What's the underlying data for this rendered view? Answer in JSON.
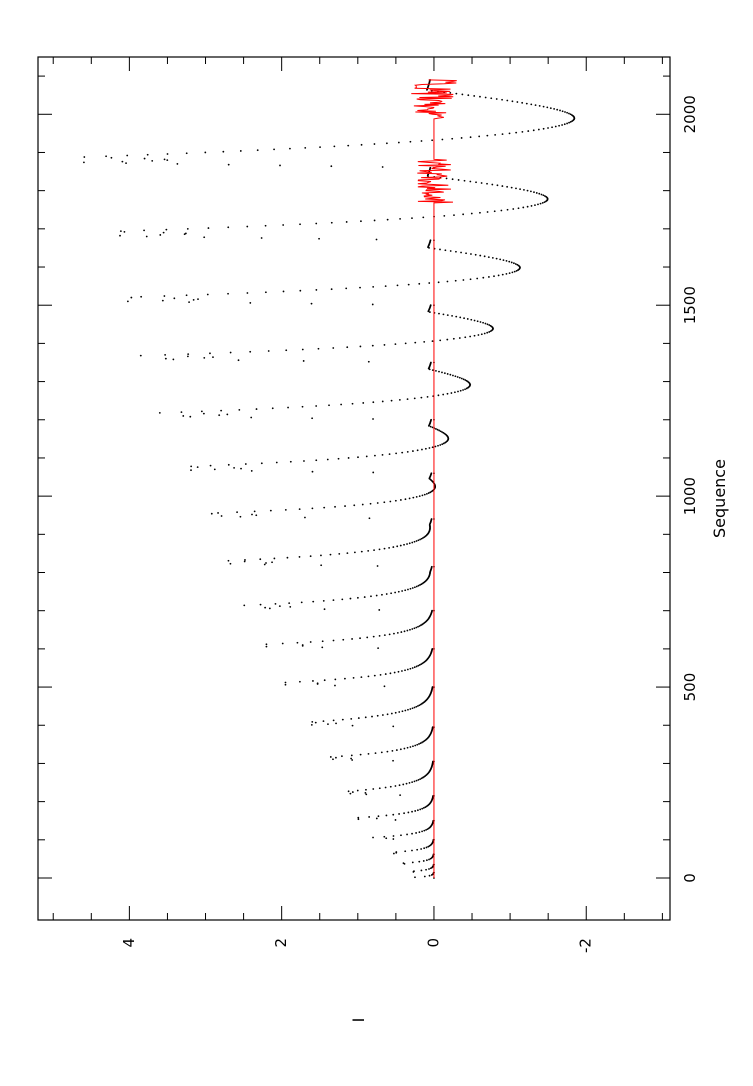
{
  "chart_data": {
    "type": "scatter",
    "orientation": "rotated-90",
    "xlabel": "Sequence",
    "ylabel": "I",
    "xlim": [
      -110,
      2150
    ],
    "ylim": [
      -3.1,
      5.2
    ],
    "x_ticks_major": [
      0,
      500,
      1000,
      1500,
      2000
    ],
    "x_tick_labels": [
      "0",
      "500",
      "1000",
      "1500",
      "2000"
    ],
    "y_ticks_major": [
      -2,
      0,
      2,
      4
    ],
    "y_tick_labels": [
      "-2",
      "0",
      "2",
      "4"
    ],
    "grid": false,
    "series": [
      {
        "color": "#000000",
        "style": "dots",
        "cycles": [
          {
            "start": 0,
            "end": 14,
            "peak": 0.28,
            "trough": 0.0
          },
          {
            "start": 14,
            "end": 35,
            "peak": 0.36,
            "trough": 0.0
          },
          {
            "start": 35,
            "end": 62,
            "peak": 0.45,
            "trough": 0.0
          },
          {
            "start": 62,
            "end": 100,
            "peak": 0.6,
            "trough": 0.0
          },
          {
            "start": 100,
            "end": 150,
            "peak": 0.8,
            "trough": 0.0
          },
          {
            "start": 150,
            "end": 215,
            "peak": 1.0,
            "trough": 0.0
          },
          {
            "start": 215,
            "end": 305,
            "peak": 1.2,
            "trough": 0.0
          },
          {
            "start": 305,
            "end": 395,
            "peak": 1.45,
            "trough": 0.0
          },
          {
            "start": 395,
            "end": 500,
            "peak": 1.7,
            "trough": 0.0
          },
          {
            "start": 500,
            "end": 600,
            "peak": 1.95,
            "trough": 0.0
          },
          {
            "start": 600,
            "end": 700,
            "peak": 2.2,
            "trough": 0.0
          },
          {
            "start": 700,
            "end": 815,
            "peak": 2.5,
            "trough": -0.05
          },
          {
            "start": 815,
            "end": 940,
            "peak": 2.8,
            "trough": -0.1
          },
          {
            "start": 940,
            "end": 1060,
            "peak": 3.05,
            "trough": -0.25
          },
          {
            "start": 1060,
            "end": 1200,
            "peak": 3.35,
            "trough": -0.5
          },
          {
            "start": 1200,
            "end": 1350,
            "peak": 3.6,
            "trough": -0.85
          },
          {
            "start": 1350,
            "end": 1500,
            "peak": 3.85,
            "trough": -1.2
          },
          {
            "start": 1500,
            "end": 1670,
            "peak": 4.1,
            "trough": -1.6
          },
          {
            "start": 1670,
            "end": 1860,
            "peak": 4.3,
            "trough": -2.0
          },
          {
            "start": 1860,
            "end": 2090,
            "peak": 4.65,
            "trough": -2.4
          }
        ]
      },
      {
        "color": "#ff0000",
        "style": "line",
        "x_range": [
          0,
          2090
        ],
        "baseline": 0.0,
        "noise_regions": [
          {
            "x": [
              1770,
              1880
            ],
            "amplitude": 0.25
          },
          {
            "x": [
              1990,
              2090
            ],
            "amplitude": 0.3
          }
        ]
      }
    ]
  }
}
